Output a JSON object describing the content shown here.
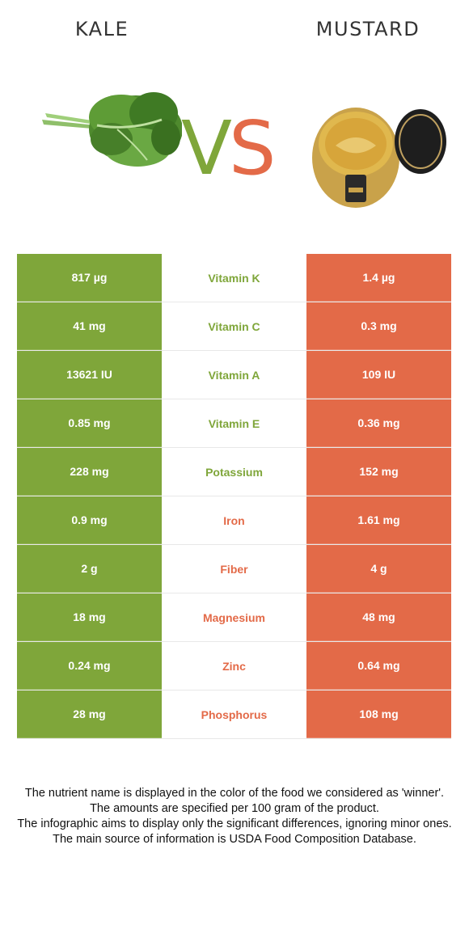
{
  "foods": {
    "left": {
      "name": "KALE",
      "color": "#7fa63a",
      "image_icon": "kale-leaf-icon"
    },
    "right": {
      "name": "MUSTARD",
      "color": "#e36a48",
      "image_icon": "mustard-jar-icon"
    }
  },
  "vs": {
    "v": "V",
    "s": "S"
  },
  "nutrients": [
    {
      "name": "Vitamin K",
      "left": "817 µg",
      "right": "1.4 µg",
      "winner": "left"
    },
    {
      "name": "Vitamin C",
      "left": "41 mg",
      "right": "0.3 mg",
      "winner": "left"
    },
    {
      "name": "Vitamin A",
      "left": "13621 IU",
      "right": "109 IU",
      "winner": "left"
    },
    {
      "name": "Vitamin E",
      "left": "0.85 mg",
      "right": "0.36 mg",
      "winner": "left"
    },
    {
      "name": "Potassium",
      "left": "228 mg",
      "right": "152 mg",
      "winner": "left"
    },
    {
      "name": "Iron",
      "left": "0.9 mg",
      "right": "1.61 mg",
      "winner": "right"
    },
    {
      "name": "Fiber",
      "left": "2 g",
      "right": "4 g",
      "winner": "right"
    },
    {
      "name": "Magnesium",
      "left": "18 mg",
      "right": "48 mg",
      "winner": "right"
    },
    {
      "name": "Zinc",
      "left": "0.24 mg",
      "right": "0.64 mg",
      "winner": "right"
    },
    {
      "name": "Phosphorus",
      "left": "28 mg",
      "right": "108 mg",
      "winner": "right"
    }
  ],
  "footer": [
    "The nutrient name is displayed in the color of the food we considered as 'winner'.",
    "The amounts are specified per 100 gram of the product.",
    "The infographic aims to display only the significant differences, ignoring minor ones.",
    "The main source of information is USDA Food Composition Database."
  ]
}
